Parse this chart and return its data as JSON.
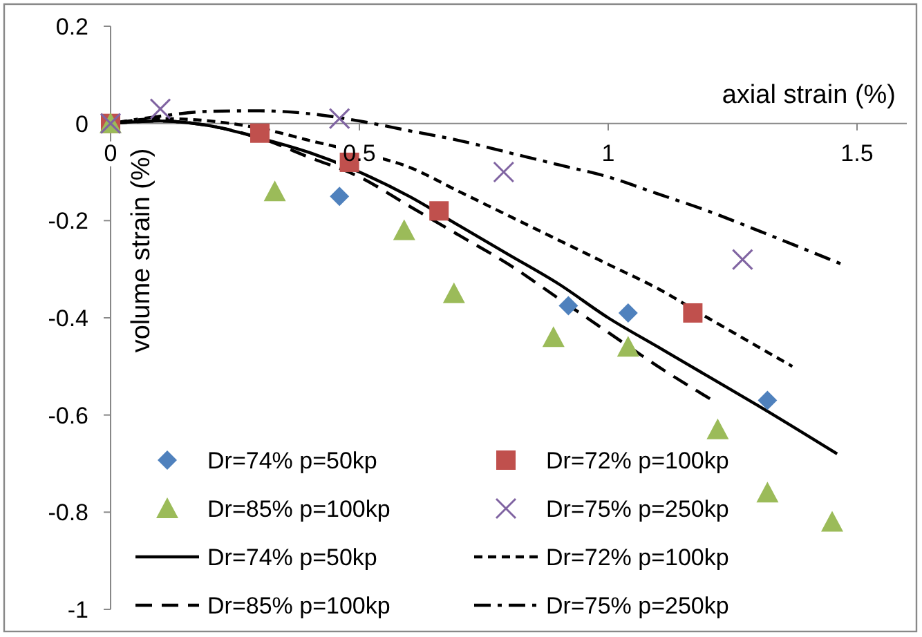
{
  "chart_data": {
    "type": "scatter",
    "xlabel": "axial strain (%)",
    "ylabel": "volume strain (%)",
    "xlim": [
      0,
      1.6
    ],
    "xticks": [
      0,
      0.5,
      1,
      1.5
    ],
    "ylim": [
      -1,
      0.2
    ],
    "yticks": [
      0.2,
      0,
      -0.2,
      -0.4,
      -0.6,
      -0.8,
      -1
    ],
    "grid": false,
    "legend": "bottom",
    "series": [
      {
        "name": "Dr=74% p=50kp",
        "marker": "diamond",
        "color": "#4f81bd",
        "x": [
          0.46,
          0.92,
          1.04,
          1.32
        ],
        "values": [
          -0.15,
          -0.375,
          -0.39,
          -0.57
        ]
      },
      {
        "name": "Dr=72% p=100kp",
        "marker": "square",
        "color": "#c0504d",
        "x": [
          0,
          0.3,
          0.48,
          0.66,
          1.17
        ],
        "values": [
          0,
          -0.02,
          -0.08,
          -0.18,
          -0.39
        ]
      },
      {
        "name": "Dr=85% p=100kp",
        "marker": "triangle",
        "color": "#9bbb59",
        "x": [
          0,
          0.33,
          0.59,
          0.69,
          0.89,
          1.04,
          1.22,
          1.32,
          1.45
        ],
        "values": [
          0,
          -0.14,
          -0.22,
          -0.35,
          -0.44,
          -0.46,
          -0.63,
          -0.76,
          -0.82
        ]
      },
      {
        "name": "Dr=75% p=250kp",
        "marker": "cross",
        "color": "#8064a2",
        "x": [
          0,
          0.1,
          0.46,
          0.79,
          1.27
        ],
        "values": [
          0,
          0.03,
          0.01,
          -0.1,
          -0.28
        ]
      },
      {
        "name": "Dr=74% p=50kp",
        "type": "line",
        "line_style": "solid",
        "color": "#000000",
        "x": [
          0,
          0.1,
          0.2,
          0.3,
          0.4,
          0.5,
          0.6,
          0.7,
          0.8,
          0.9,
          1.0,
          1.1,
          1.2,
          1.3,
          1.46
        ],
        "values": [
          0,
          0.005,
          -0.005,
          -0.03,
          -0.06,
          -0.1,
          -0.15,
          -0.21,
          -0.27,
          -0.33,
          -0.4,
          -0.46,
          -0.52,
          -0.58,
          -0.68
        ]
      },
      {
        "name": "Dr=72% p=100kp",
        "type": "line",
        "line_style": "dashed",
        "color": "#000000",
        "x": [
          0,
          0.1,
          0.2,
          0.3,
          0.4,
          0.5,
          0.6,
          0.7,
          0.8,
          0.9,
          1.0,
          1.1,
          1.2,
          1.37
        ],
        "values": [
          0,
          0.01,
          0.005,
          -0.01,
          -0.035,
          -0.06,
          -0.09,
          -0.14,
          -0.19,
          -0.24,
          -0.29,
          -0.34,
          -0.4,
          -0.5
        ]
      },
      {
        "name": "Dr=85% p=100kp",
        "type": "line",
        "line_style": "longdash",
        "color": "#000000",
        "x": [
          0,
          0.1,
          0.2,
          0.3,
          0.4,
          0.5,
          0.6,
          0.7,
          0.8,
          0.9,
          1.0,
          1.1,
          1.21
        ],
        "values": [
          0,
          0.005,
          -0.005,
          -0.03,
          -0.07,
          -0.11,
          -0.17,
          -0.23,
          -0.29,
          -0.36,
          -0.43,
          -0.5,
          -0.57
        ]
      },
      {
        "name": "Dr=75% p=250kp",
        "type": "line",
        "line_style": "dashdot",
        "color": "#000000",
        "x": [
          0,
          0.1,
          0.2,
          0.3,
          0.4,
          0.5,
          0.6,
          0.7,
          0.8,
          0.9,
          1.0,
          1.1,
          1.2,
          1.3,
          1.47
        ],
        "values": [
          0,
          0.015,
          0.025,
          0.026,
          0.02,
          0.005,
          -0.015,
          -0.035,
          -0.06,
          -0.085,
          -0.11,
          -0.145,
          -0.18,
          -0.22,
          -0.29
        ]
      }
    ]
  }
}
